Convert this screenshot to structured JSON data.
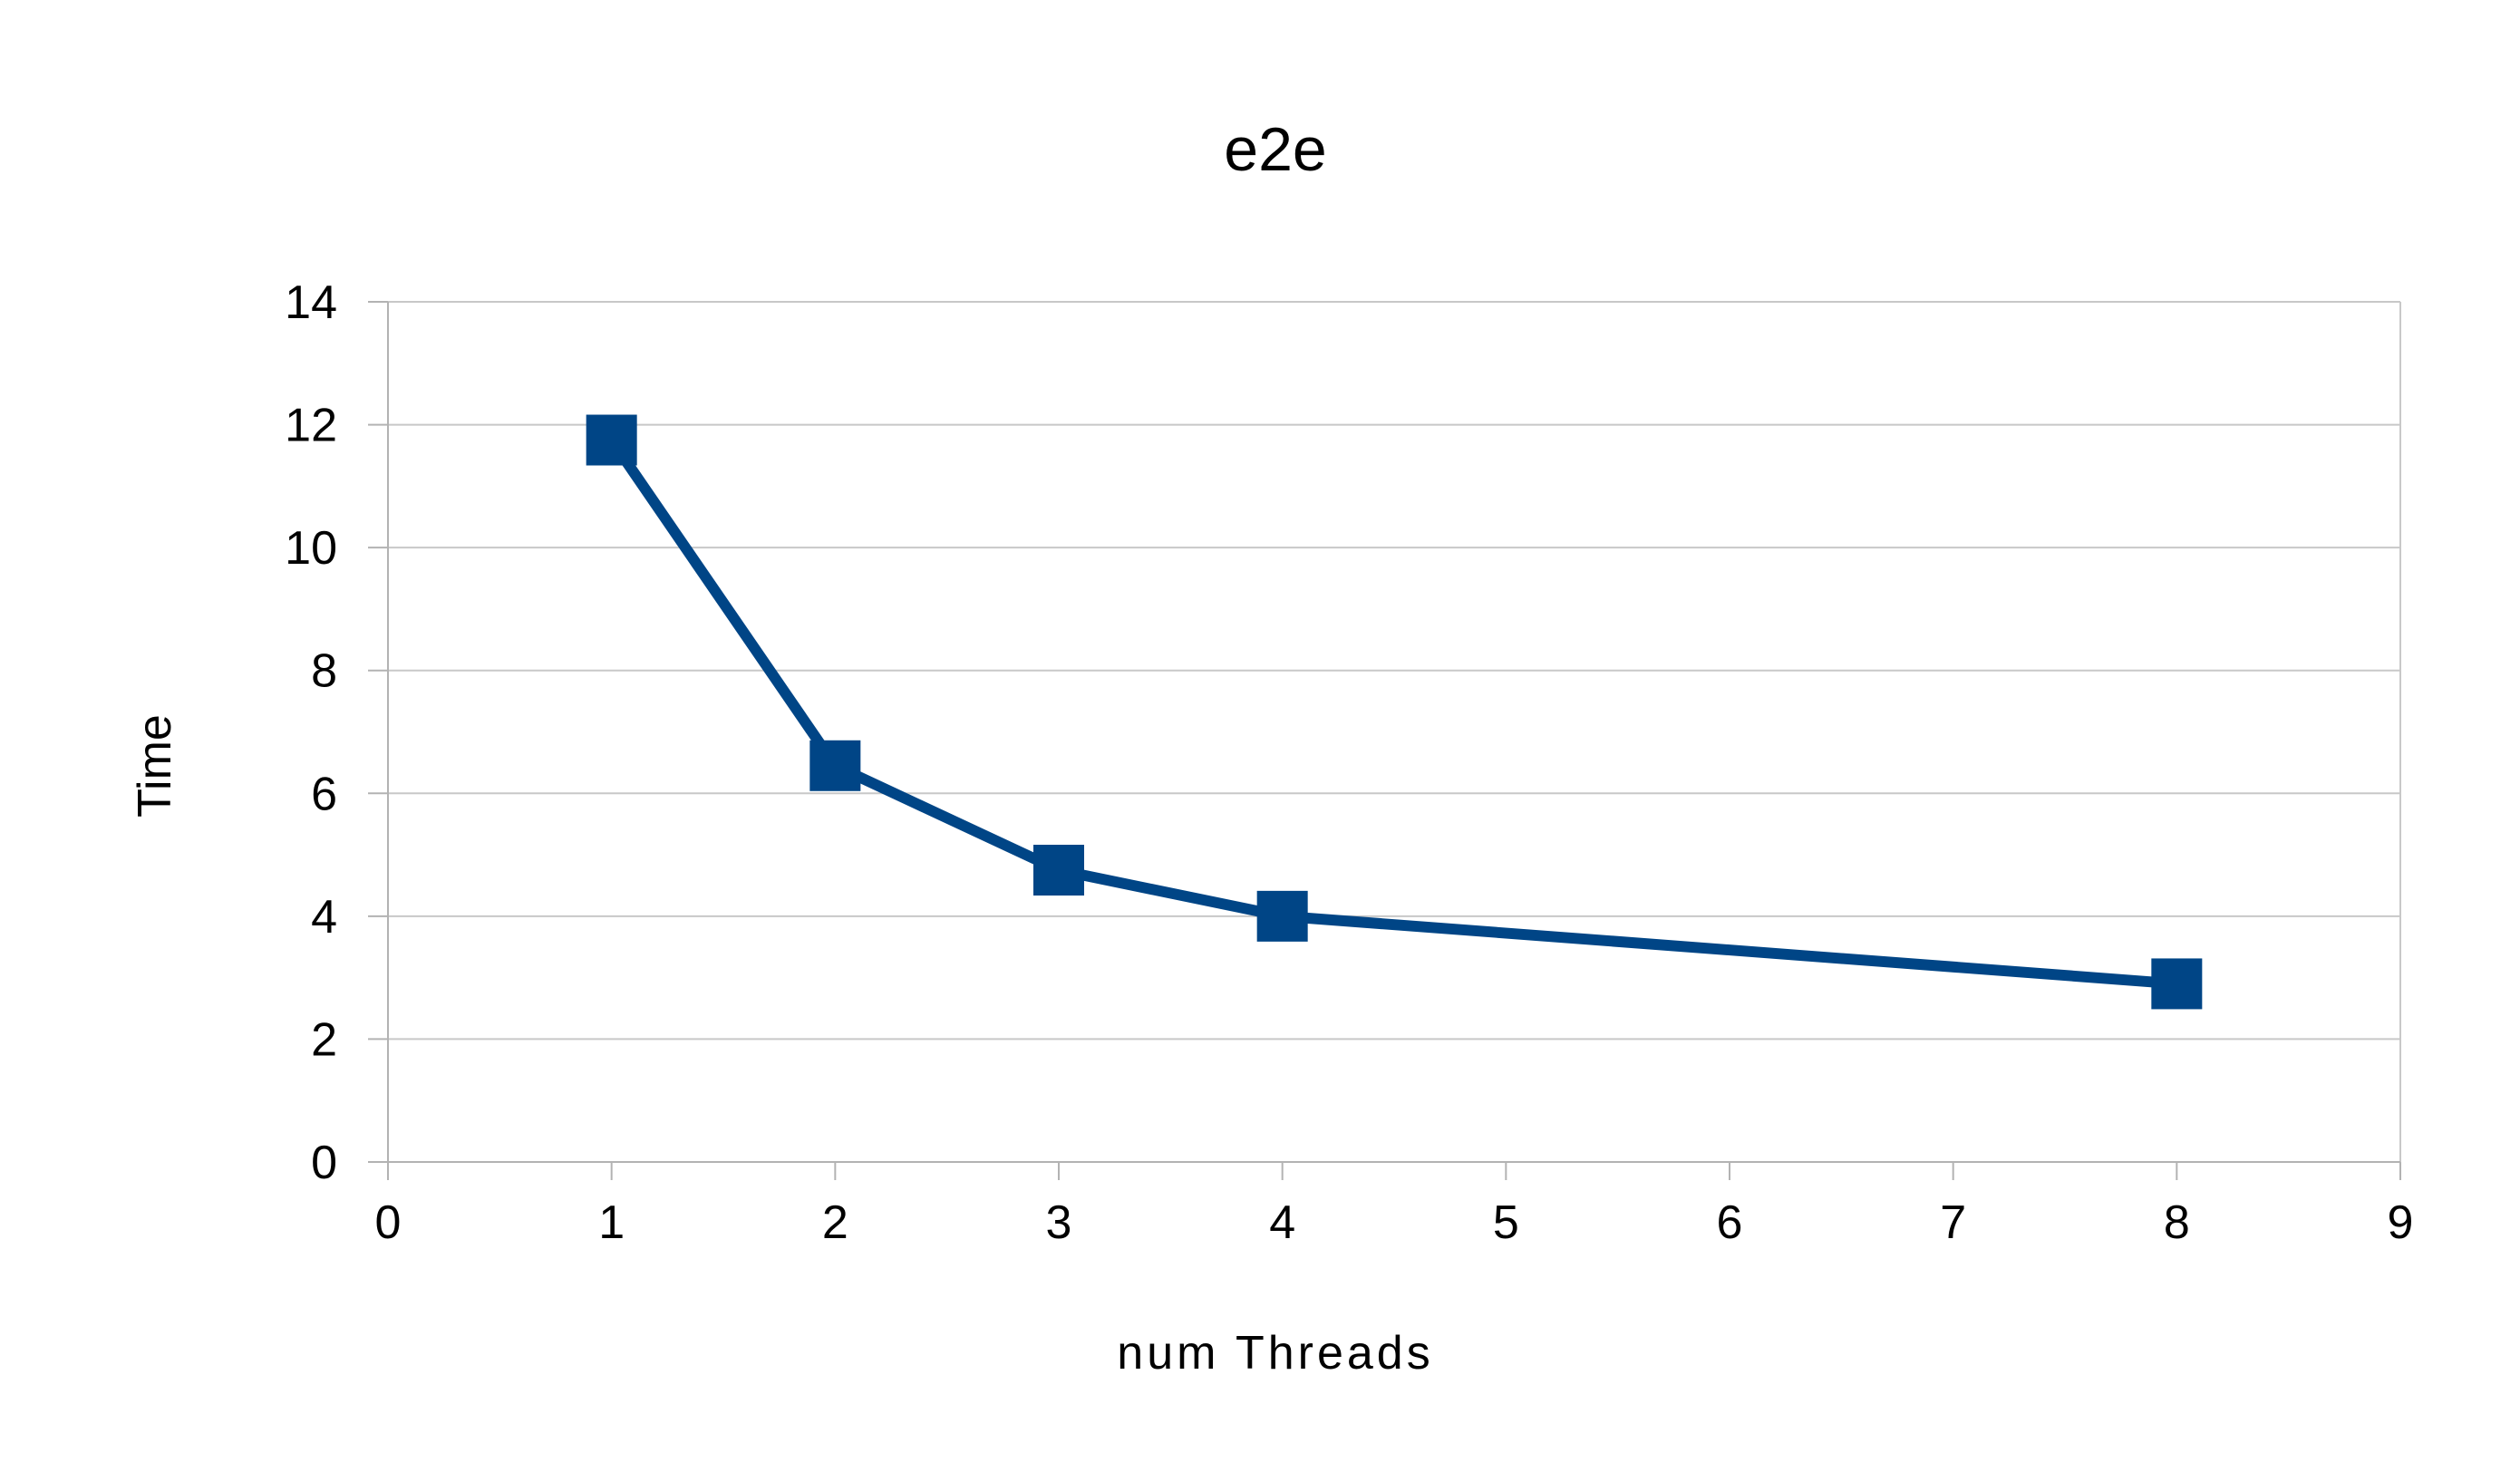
{
  "chart_data": {
    "type": "line",
    "title": "e2e",
    "xlabel": "num Threads",
    "ylabel": "Time",
    "xlim": [
      0,
      9
    ],
    "ylim": [
      0,
      14
    ],
    "x_ticks": [
      "0",
      "1",
      "2",
      "3",
      "4",
      "5",
      "6",
      "7",
      "8",
      "9"
    ],
    "y_ticks": [
      "0",
      "2",
      "4",
      "6",
      "8",
      "10",
      "12",
      "14"
    ],
    "grid": true,
    "legend": "none",
    "series": [
      {
        "x": [
          1,
          2,
          3,
          4,
          8
        ],
        "y": [
          11.75,
          6.45,
          4.75,
          4.0,
          2.9
        ],
        "color": "#004586",
        "marker": "square"
      }
    ]
  }
}
